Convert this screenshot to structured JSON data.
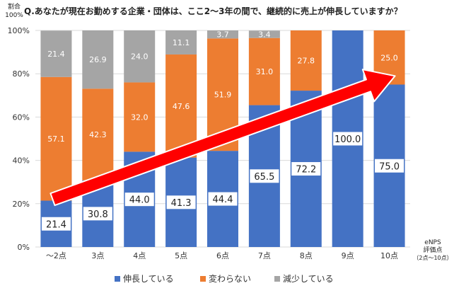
{
  "chart_data": {
    "type": "bar",
    "stacked": true,
    "title": "Q.あなたが現在お勤めする企業・団体は、ここ2～3年の間で、継続的に売上が伸長していますか？",
    "ylabel_line1": "割合",
    "ylabel_line2": "100%",
    "xlabel_line1": "eNPS",
    "xlabel_line2": "評価点",
    "xlabel_line3": "（2点～10点）",
    "categories": [
      "～2点",
      "3点",
      "4点",
      "5点",
      "6点",
      "7点",
      "8点",
      "9点",
      "10点"
    ],
    "yticks": [
      "0%",
      "20%",
      "40%",
      "60%",
      "80%",
      "100%"
    ],
    "ylim": [
      0,
      100
    ],
    "series": [
      {
        "name": "伸長している",
        "color": "#4472c4",
        "values": [
          21.4,
          30.8,
          44.0,
          41.3,
          44.4,
          65.5,
          72.2,
          100.0,
          75.0
        ],
        "labels": [
          "21.4",
          "30.8",
          "44.0",
          "41.3",
          "44.4",
          "65.5",
          "72.2",
          "100.0",
          "75.0"
        ]
      },
      {
        "name": "変わらない",
        "color": "#ed7d31",
        "values": [
          57.1,
          42.3,
          32.0,
          47.6,
          51.9,
          31.0,
          27.8,
          0,
          25.0
        ],
        "labels": [
          "57.1",
          "42.3",
          "32.0",
          "47.6",
          "51.9",
          "31.0",
          "27.8",
          "",
          "25.0"
        ]
      },
      {
        "name": "減少している",
        "color": "#a5a5a5",
        "values": [
          21.4,
          26.9,
          24.0,
          11.1,
          3.7,
          3.4,
          0,
          0,
          0
        ],
        "labels": [
          "21.4",
          "26.9",
          "24.0",
          "11.1",
          "3.7",
          "3.4",
          "",
          "",
          ""
        ]
      }
    ],
    "annotation": "upward trend arrow",
    "arrow_color": "#ff0000",
    "legend_position": "bottom"
  }
}
